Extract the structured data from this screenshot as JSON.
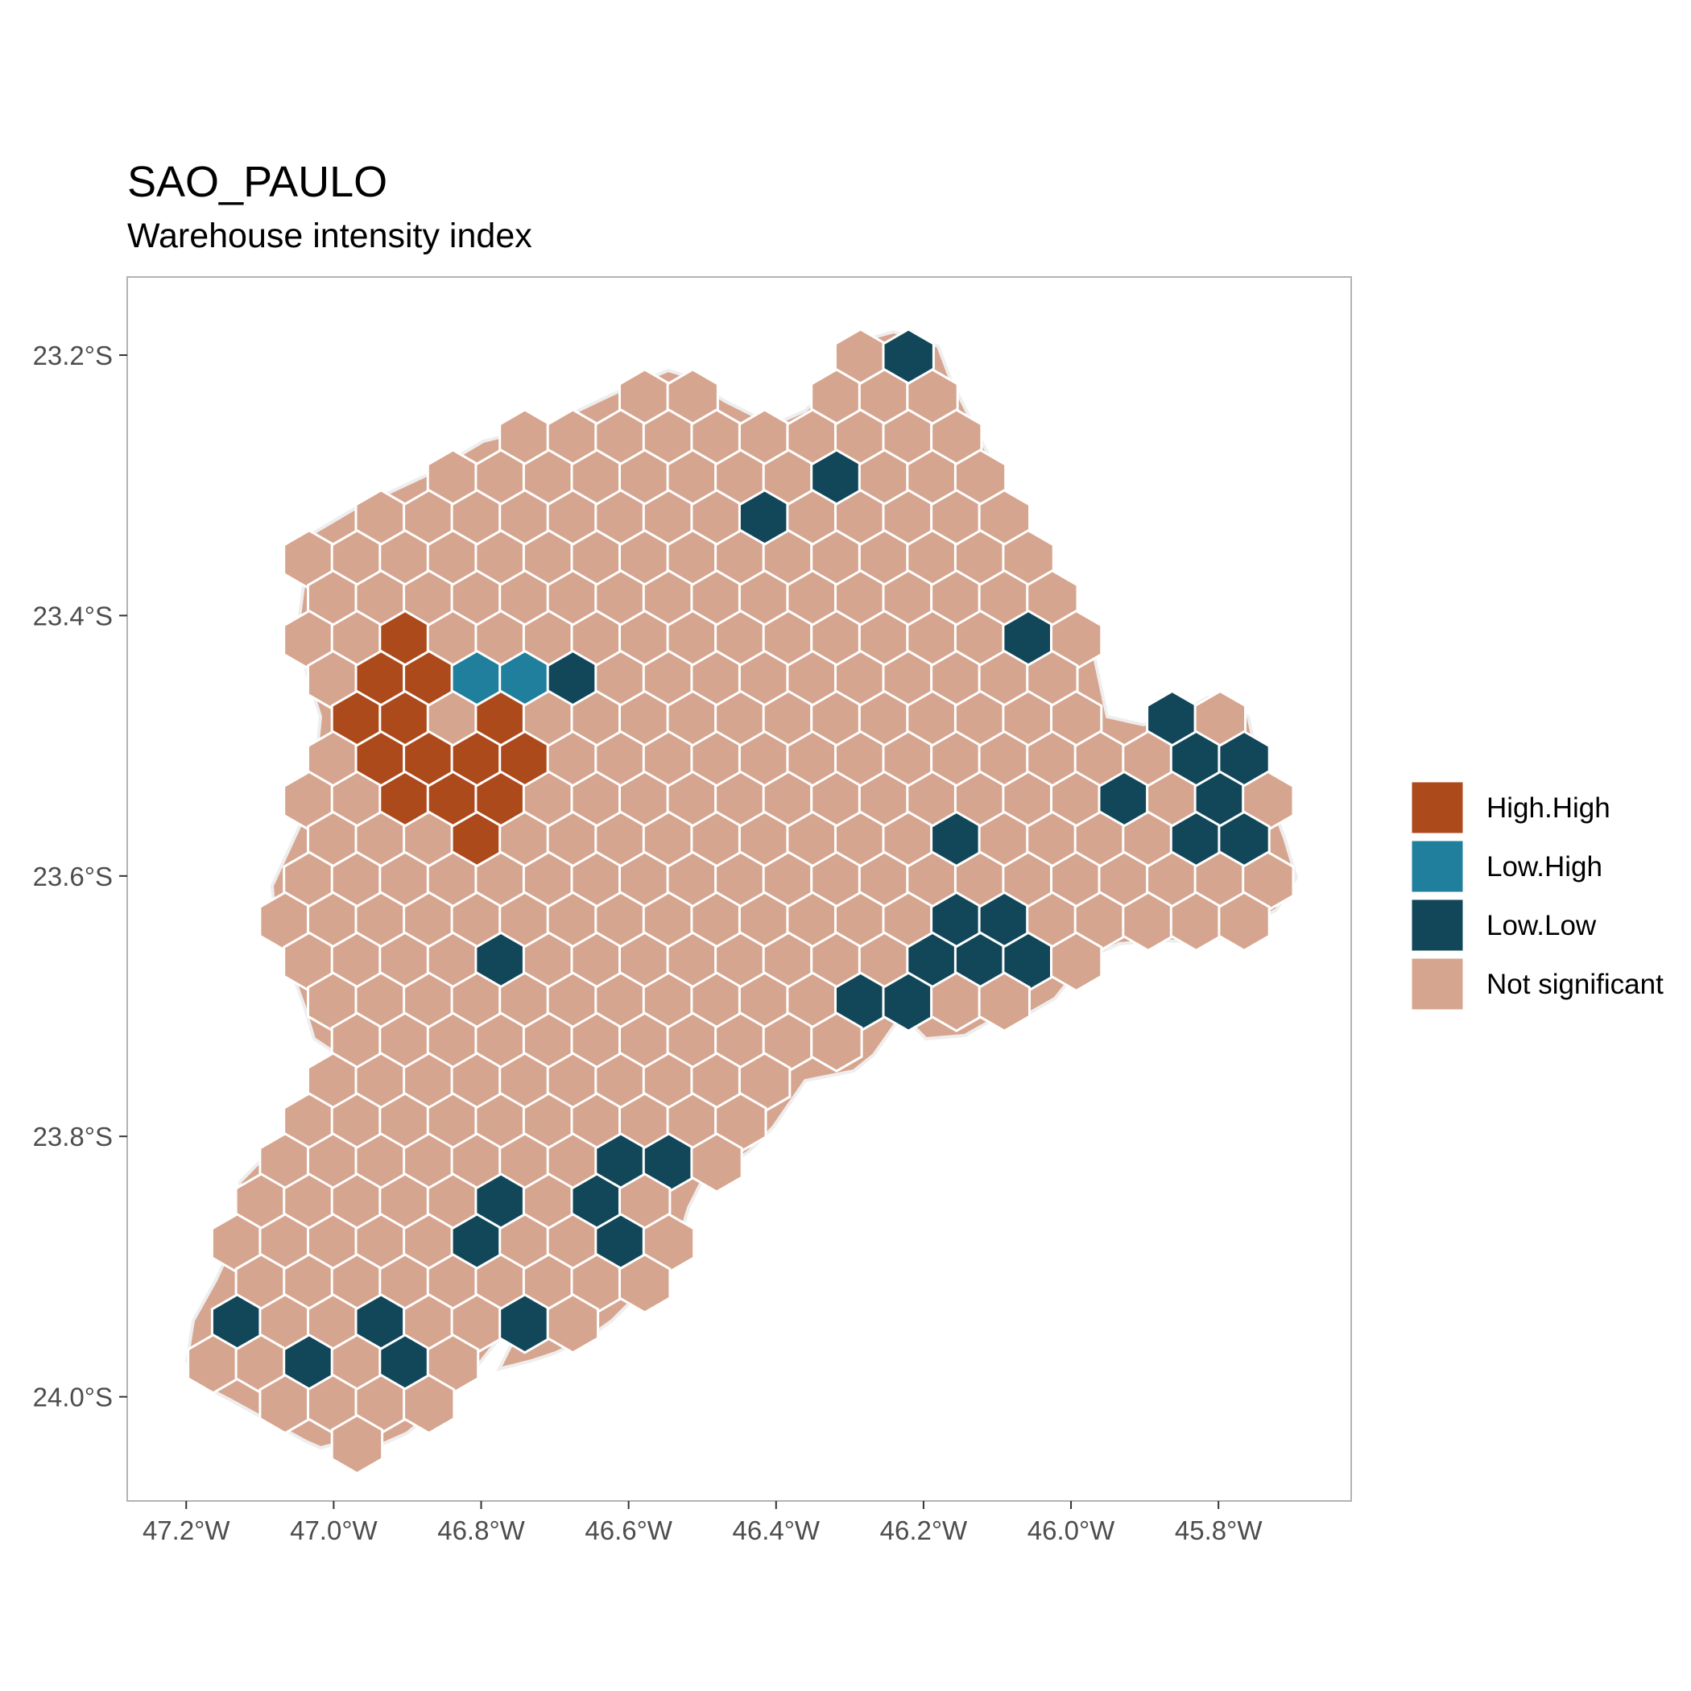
{
  "title": "SAO_PAULO",
  "subtitle": "Warehouse intensity index",
  "map": {
    "region": "SAO_PAULO",
    "lon_range": [
      -47.28,
      -45.62
    ],
    "lat_range": [
      -24.08,
      -23.14
    ],
    "x_ticks": [
      {
        "value": -47.2,
        "label": "47.2°W"
      },
      {
        "value": -47.0,
        "label": "47.0°W"
      },
      {
        "value": -46.8,
        "label": "46.8°W"
      },
      {
        "value": -46.6,
        "label": "46.6°W"
      },
      {
        "value": -46.4,
        "label": "46.4°W"
      },
      {
        "value": -46.2,
        "label": "46.2°W"
      },
      {
        "value": -46.0,
        "label": "46.0°W"
      },
      {
        "value": -45.8,
        "label": "45.8°W"
      }
    ],
    "y_ticks": [
      {
        "value": -23.2,
        "label": "23.2°S"
      },
      {
        "value": -23.4,
        "label": "23.4°S"
      },
      {
        "value": -23.6,
        "label": "23.6°S"
      },
      {
        "value": -23.8,
        "label": "23.8°S"
      },
      {
        "value": -24.0,
        "label": "24.0°S"
      }
    ],
    "grid": "off",
    "colors": {
      "High.High": "#ad4a1c",
      "Low.High": "#1f7f9c",
      "Low.Low": "#12475a",
      "Not significant": "#d6a58f",
      "hex_border": "#ffffff",
      "panel_border": "#b3b3b3"
    },
    "legend": {
      "position": "right",
      "items": [
        {
          "key": "High.High",
          "label": "High.High",
          "color": "#ad4a1c"
        },
        {
          "key": "Low.High",
          "label": "Low.High",
          "color": "#1f7f9c"
        },
        {
          "key": "Low.Low",
          "label": "Low.Low",
          "color": "#12475a"
        },
        {
          "key": "Not significant",
          "label": "Not significant",
          "color": "#d6a58f"
        }
      ]
    }
  }
}
